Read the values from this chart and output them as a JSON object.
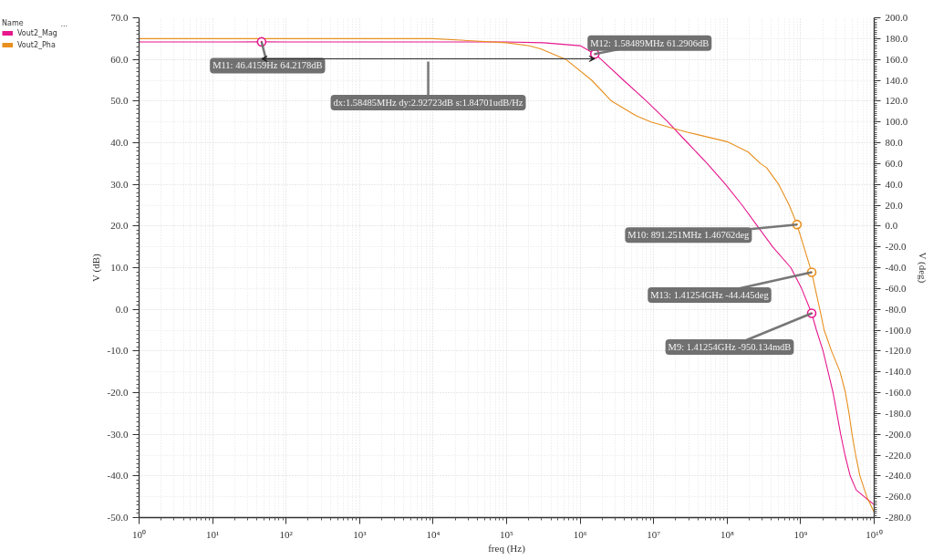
{
  "chart_data": {
    "type": "line",
    "xlabel": "freq (Hz)",
    "ylabel": "V (dB)",
    "y2label": "V (deg)",
    "legend_title": "Name",
    "log": "x",
    "grid": true,
    "legend": "top left",
    "line_style": "solid",
    "xlim": [
      1,
      10000000000
    ],
    "xticks": [
      {
        "value": 1,
        "label": "10⁰"
      },
      {
        "value": 10,
        "label": "10¹"
      },
      {
        "value": 100,
        "label": "10²"
      },
      {
        "value": 1000,
        "label": "10³"
      },
      {
        "value": 10000,
        "label": "10⁴"
      },
      {
        "value": 100000,
        "label": "10⁵"
      },
      {
        "value": 1000000,
        "label": "10⁶"
      },
      {
        "value": 10000000,
        "label": "10⁷"
      },
      {
        "value": 100000000,
        "label": "10⁸"
      },
      {
        "value": 1000000000,
        "label": "10⁹"
      },
      {
        "value": 10000000000,
        "label": "10¹⁰"
      }
    ],
    "ylim": [
      -50,
      70
    ],
    "yticks": [
      {
        "value": -50,
        "label": "-50.0"
      },
      {
        "value": -40,
        "label": "-40.0"
      },
      {
        "value": -30,
        "label": "-30.0"
      },
      {
        "value": -20,
        "label": "-20.0"
      },
      {
        "value": -10,
        "label": "-10.0"
      },
      {
        "value": 0,
        "label": "0.0"
      },
      {
        "value": 10,
        "label": "10.0"
      },
      {
        "value": 20,
        "label": "20.0"
      },
      {
        "value": 30,
        "label": "30.0"
      },
      {
        "value": 40,
        "label": "40.0"
      },
      {
        "value": 50,
        "label": "50.0"
      },
      {
        "value": 60,
        "label": "60.0"
      },
      {
        "value": 70,
        "label": "70.0"
      }
    ],
    "y2lim": [
      -280,
      200
    ],
    "y2ticks": [
      {
        "value": -280,
        "label": "-280.0"
      },
      {
        "value": -260,
        "label": "-260.0"
      },
      {
        "value": -240,
        "label": "-240.0"
      },
      {
        "value": -220,
        "label": "-220.0"
      },
      {
        "value": -200,
        "label": "-200.0"
      },
      {
        "value": -180,
        "label": "-180.0"
      },
      {
        "value": -160,
        "label": "-160.0"
      },
      {
        "value": -140,
        "label": "-140.0"
      },
      {
        "value": -120,
        "label": "-120.0"
      },
      {
        "value": -100,
        "label": "-100.0"
      },
      {
        "value": -80,
        "label": "-80.0"
      },
      {
        "value": -60,
        "label": "-60.0"
      },
      {
        "value": -40,
        "label": "-40.0"
      },
      {
        "value": -20,
        "label": "-20.0"
      },
      {
        "value": 0,
        "label": "0.0"
      },
      {
        "value": 20,
        "label": "20.0"
      },
      {
        "value": 40,
        "label": "40.0"
      },
      {
        "value": 60,
        "label": "60.0"
      },
      {
        "value": 80,
        "label": "80.0"
      },
      {
        "value": 100,
        "label": "100.0"
      },
      {
        "value": 120,
        "label": "120.0"
      },
      {
        "value": 140,
        "label": "140.0"
      },
      {
        "value": 160,
        "label": "160.0"
      },
      {
        "value": 180,
        "label": "180.0"
      },
      {
        "value": 200,
        "label": "200.0"
      }
    ],
    "series": [
      {
        "name": "Vout2_Mag",
        "color": "#e6178d",
        "x": [
          1,
          10,
          46.4159,
          100,
          1000,
          10000,
          100000,
          316000,
          1000000,
          1584890,
          1930000,
          3900000,
          8000000,
          15600000,
          28800000,
          53700000,
          95000000,
          160000000,
          258000000,
          416000000,
          735000000,
          1030000000,
          1412540000,
          1640000000,
          2020000000,
          2360000000,
          2760000000,
          3110000000,
          3500000000,
          4010000000,
          4720000000,
          5720000000,
          7940000000,
          10000000000
        ],
        "values": [
          64.2,
          64.2,
          64.2178,
          64.2,
          64.2,
          64.2,
          64.2,
          64,
          63.3,
          61.2906,
          60,
          55,
          50,
          45,
          40,
          35,
          30,
          25,
          20,
          15,
          10,
          5,
          -0.950134,
          -5,
          -10,
          -15,
          -20,
          -25,
          -30,
          -35,
          -40,
          -43.4,
          -45.5,
          -46.9
        ]
      },
      {
        "name": "Vout2_Pha",
        "color": "#e88f1e",
        "axis": "y2",
        "x": [
          1,
          1000,
          10000,
          100000,
          204000,
          295000,
          640000,
          1440000,
          2670000,
          5730000,
          9200000,
          18000000,
          28800000,
          38500000,
          100000000,
          194000000,
          284000000,
          344000000,
          502000000,
          700000000,
          891251000,
          1412540000,
          1820000000,
          2090000000,
          2630000000,
          3430000000,
          4070000000,
          4550000000,
          5000000000,
          5600000000,
          6400000000,
          7940000000,
          10000000000
        ],
        "values": [
          180,
          180,
          180,
          176,
          173,
          170,
          160,
          140,
          120,
          106,
          100,
          94,
          90,
          88,
          81,
          71,
          60,
          56,
          40,
          20,
          1.46762,
          -44.445,
          -80,
          -100,
          -120,
          -140,
          -160,
          -180,
          -200,
          -220,
          -240,
          -260,
          -275
        ]
      }
    ],
    "annotations": [
      {
        "text": "M11: 46.4159Hz 64.2178dB",
        "x": 46.4159,
        "y": 64.2178
      },
      {
        "text": "M12: 1.58489MHz 61.2906dB",
        "x": 1584890,
        "y": 61.2906
      },
      "dx:1.58485MHz dy:2.92723dB s:1.84701udB/Hz",
      {
        "text": "M10: 891.251MHz 1.46762deg",
        "x": 891251000,
        "y": 20.37
      },
      {
        "text": "M13: 1.41254GHz -44.445deg",
        "x": 1412540000,
        "y": 8.89
      },
      {
        "text": "M9: 1.41254GHz -950.134mdB",
        "x": 1412540000,
        "y": -0.950134
      },
      "..."
    ]
  }
}
